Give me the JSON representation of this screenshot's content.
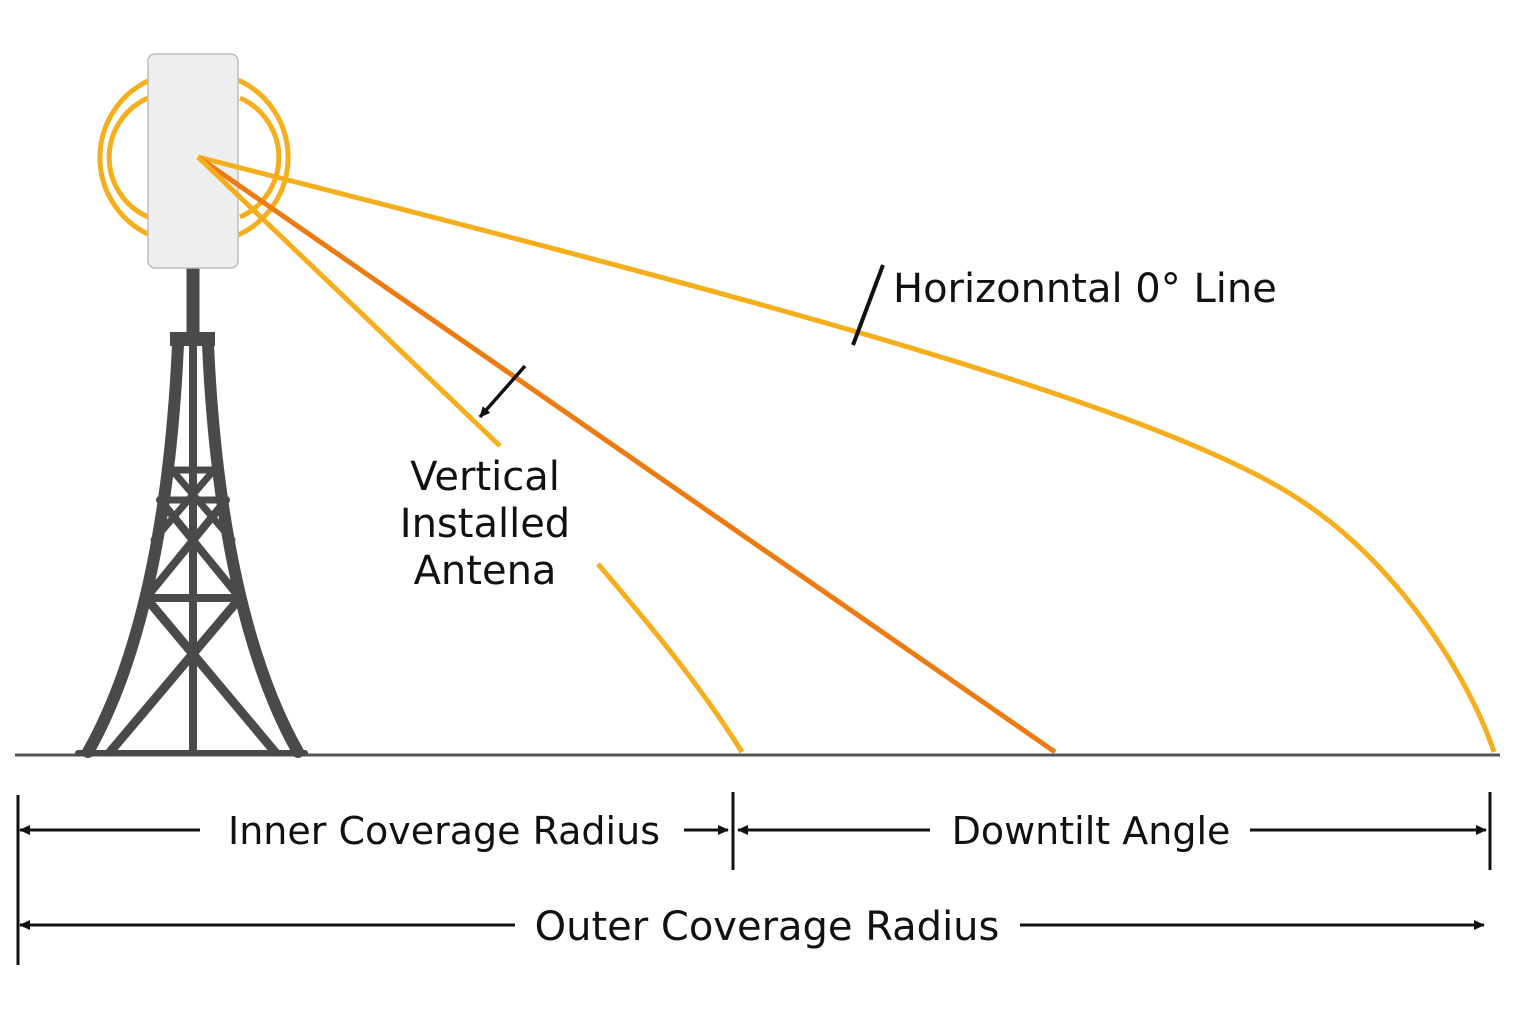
{
  "labels": {
    "horizontal_line": "Horizonntal 0° Line",
    "vertical_antenna": [
      "Vertical",
      "Installed",
      "Antena"
    ],
    "inner_radius": "Inner Coverage Radius",
    "downtilt_angle": "Downtilt Angle",
    "outer_radius": "Outer Coverage Radius"
  },
  "colors": {
    "beam_outer": "#F6AE1D",
    "beam_center": "#EE7A12",
    "signal_rings": "#F6AE1D",
    "tower": "#4A4A4A",
    "antenna_body": "#EEEEEE",
    "ground": "#555555",
    "dimension_lines": "#111111"
  },
  "icons": {
    "tower": "lattice-tower-icon",
    "antenna": "panel-antenna-icon",
    "signal": "signal-waves-icon"
  }
}
